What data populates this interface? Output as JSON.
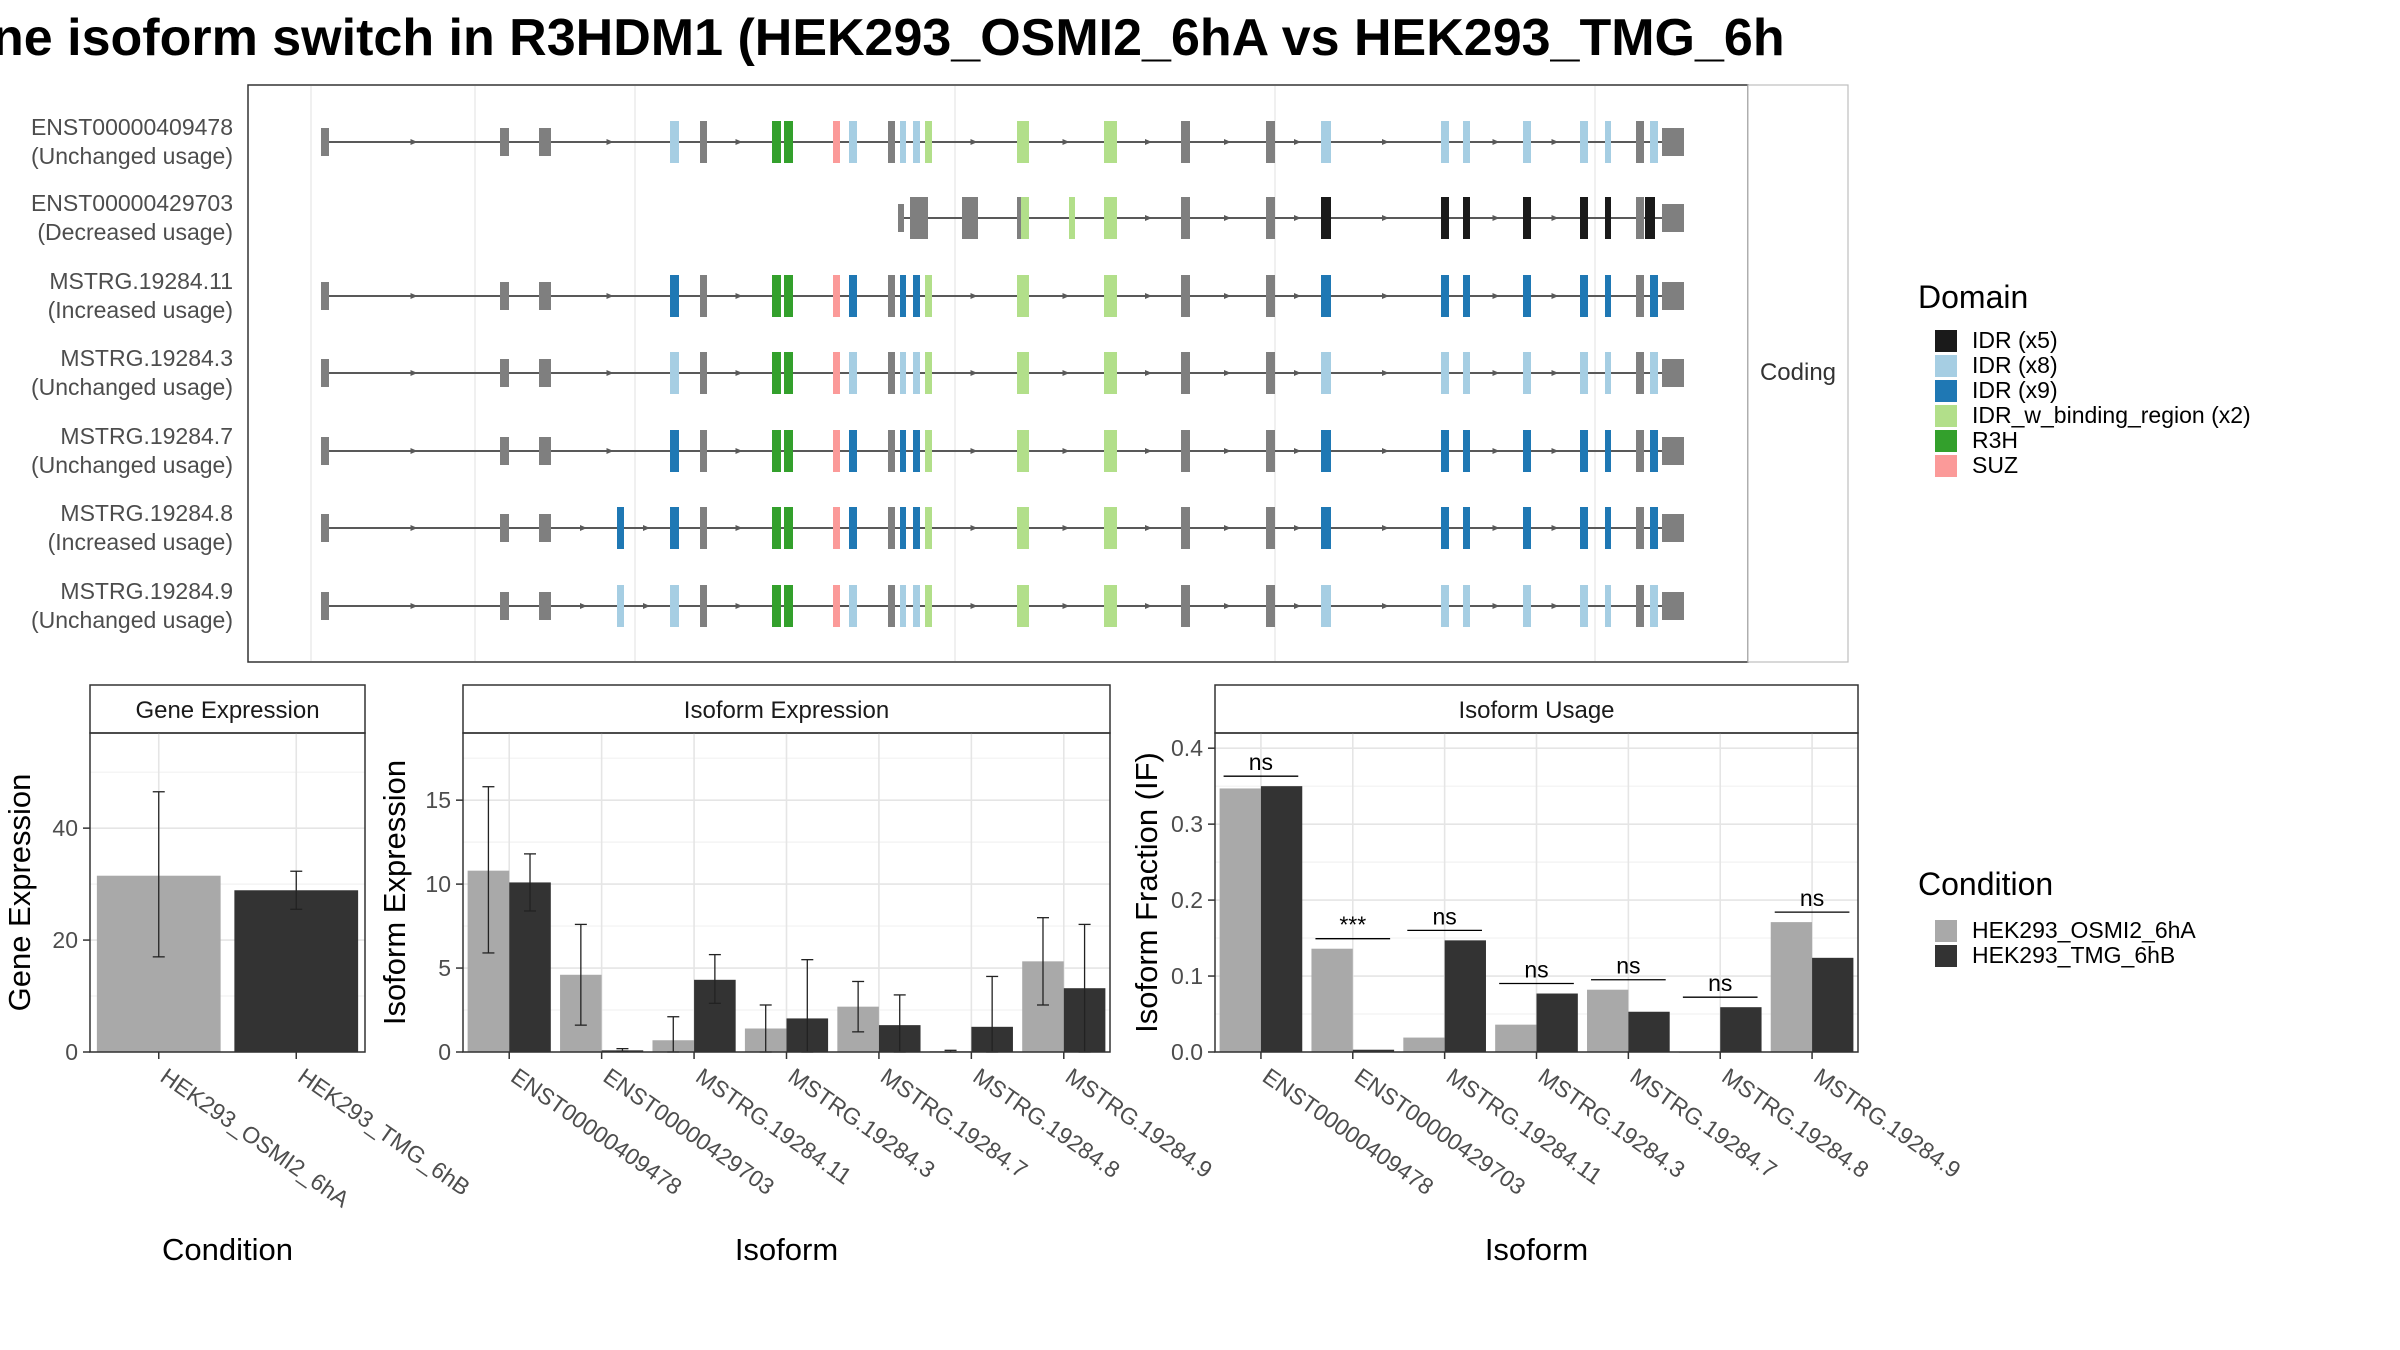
{
  "title": "ne isoform switch in R3HDM1 (HEK293_OSMI2_6hA vs HEK293_TMG_6h",
  "colors": {
    "cond_a": "#a9a9a9",
    "cond_b": "#333333",
    "intron": "#595959",
    "utr": "#7f7f7f",
    "domain_black": "#1a1a1a",
    "domain_lightblue": "#a6cee3",
    "domain_blue": "#1f78b4",
    "domain_lightgreen": "#b2df8a",
    "domain_green": "#33a02c",
    "domain_pink": "#fb9a99"
  },
  "structure": {
    "strip_label": "Coding",
    "transcripts": [
      {
        "id": "ENST00000409478",
        "usage": "(Unchanged usage)",
        "tpl": "full"
      },
      {
        "id": "ENST00000429703",
        "usage": "(Decreased usage)",
        "tpl": "short"
      },
      {
        "id": "MSTRG.19284.11",
        "usage": "(Increased usage)",
        "tpl": "full_blue"
      },
      {
        "id": "MSTRG.19284.3",
        "usage": "(Unchanged usage)",
        "tpl": "full"
      },
      {
        "id": "MSTRG.19284.7",
        "usage": "(Unchanged usage)",
        "tpl": "full_blue"
      },
      {
        "id": "MSTRG.19284.8",
        "usage": "(Increased usage)",
        "tpl": "full_blue_extra"
      },
      {
        "id": "MSTRG.19284.9",
        "usage": "(Unchanged usage)",
        "tpl": "full_extra"
      }
    ]
  },
  "legend_domain": {
    "title": "Domain",
    "items": [
      {
        "label": "IDR (x5)",
        "color": "#1a1a1a"
      },
      {
        "label": "IDR (x8)",
        "color": "#a6cee3"
      },
      {
        "label": "IDR (x9)",
        "color": "#1f78b4"
      },
      {
        "label": "IDR_w_binding_region (x2)",
        "color": "#b2df8a"
      },
      {
        "label": "R3H",
        "color": "#33a02c"
      },
      {
        "label": "SUZ",
        "color": "#fb9a99"
      }
    ]
  },
  "legend_condition": {
    "title": "Condition",
    "items": [
      {
        "label": "HEK293_OSMI2_6hA",
        "color": "#a9a9a9"
      },
      {
        "label": "HEK293_TMG_6hB",
        "color": "#333333"
      }
    ]
  },
  "chart_data": [
    {
      "type": "bar",
      "panel": "Gene Expression",
      "xlabel": "Condition",
      "ylabel": "Gene Expression",
      "ylim": [
        0,
        57
      ],
      "yticks": [
        0,
        20,
        40
      ],
      "categories": [
        "HEK293_OSMI2_6hA",
        "HEK293_TMG_6hB"
      ],
      "values": [
        31.5,
        28.9
      ],
      "err_low": [
        17,
        25.5
      ],
      "err_high": [
        46.5,
        32.3
      ]
    },
    {
      "type": "bar",
      "panel": "Isoform Expression",
      "xlabel": "Isoform",
      "ylabel": "Isoform Expression",
      "ylim": [
        0,
        19
      ],
      "yticks": [
        0,
        5,
        10,
        15
      ],
      "categories": [
        "ENST00000409478",
        "ENST00000429703",
        "MSTRG.19284.11",
        "MSTRG.19284.3",
        "MSTRG.19284.7",
        "MSTRG.19284.8",
        "MSTRG.19284.9"
      ],
      "series": [
        {
          "name": "HEK293_OSMI2_6hA",
          "values": [
            10.8,
            4.6,
            0.7,
            1.4,
            2.7,
            0.05,
            5.4
          ],
          "err_low": [
            5.9,
            1.6,
            0,
            0,
            1.2,
            0,
            2.8
          ],
          "err_high": [
            15.8,
            7.6,
            2.1,
            2.8,
            4.2,
            0.1,
            8.0
          ]
        },
        {
          "name": "HEK293_TMG_6hB",
          "values": [
            10.1,
            0.1,
            4.3,
            2.0,
            1.6,
            1.5,
            3.8
          ],
          "err_low": [
            8.4,
            0.05,
            2.9,
            0,
            0,
            0,
            0
          ],
          "err_high": [
            11.8,
            0.2,
            5.8,
            5.5,
            3.4,
            4.5,
            7.6
          ]
        }
      ]
    },
    {
      "type": "bar",
      "panel": "Isoform Usage",
      "xlabel": "Isoform",
      "ylabel": "Isoform Fraction (IF)",
      "ylim": [
        0,
        0.42
      ],
      "yticks": [
        "0.0",
        "0.1",
        "0.2",
        "0.3",
        "0.4"
      ],
      "categories": [
        "ENST00000409478",
        "ENST00000429703",
        "MSTRG.19284.11",
        "MSTRG.19284.3",
        "MSTRG.19284.7",
        "MSTRG.19284.8",
        "MSTRG.19284.9"
      ],
      "series": [
        {
          "name": "HEK293_OSMI2_6hA",
          "values": [
            0.347,
            0.136,
            0.019,
            0.036,
            0.082,
            0.0,
            0.171
          ]
        },
        {
          "name": "HEK293_TMG_6hB",
          "values": [
            0.35,
            0.003,
            0.147,
            0.077,
            0.053,
            0.059,
            0.124
          ]
        }
      ],
      "significance": [
        "ns",
        "***",
        "ns",
        "ns",
        "ns",
        "ns",
        "ns"
      ]
    }
  ]
}
